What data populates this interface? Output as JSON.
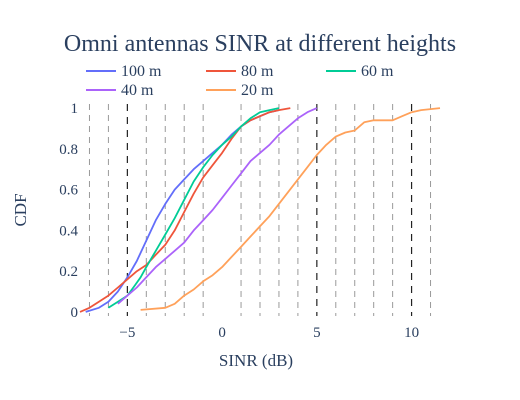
{
  "chart_data": {
    "type": "line",
    "title": "Omni antennas SINR at different heights",
    "xlabel": "SINR (dB)",
    "ylabel": "CDF",
    "xlim": [
      -7.5,
      11.5
    ],
    "ylim": [
      -0.02,
      1.02
    ],
    "xticks": [
      -5,
      0,
      5,
      10
    ],
    "xtick_labels": [
      "−5",
      "0",
      "5",
      "10"
    ],
    "yticks": [
      0,
      0.2,
      0.4,
      0.6,
      0.8,
      1
    ],
    "ytick_labels": [
      "0",
      "0.2",
      "0.4",
      "0.6",
      "0.8",
      "1"
    ],
    "grid": "dashed vertical lines",
    "grid_x": [
      -7,
      -6,
      -5,
      -4,
      -3,
      -2,
      -1,
      1,
      2,
      3,
      4,
      5,
      6,
      7,
      8,
      9,
      10,
      11
    ],
    "grid_major_x": [
      -5,
      5,
      10
    ],
    "legend_position": "top",
    "series": [
      {
        "name": "100 m",
        "color": "#636efa",
        "x": [
          -7.2,
          -6.5,
          -6.0,
          -5.5,
          -5.0,
          -4.5,
          -4.0,
          -3.5,
          -3.0,
          -2.5,
          -2.0,
          -1.5,
          -1.0,
          -0.5,
          0.0,
          0.5,
          1.0,
          1.5,
          2.0,
          2.5,
          3.0
        ],
        "y": [
          0.0,
          0.02,
          0.05,
          0.1,
          0.17,
          0.25,
          0.35,
          0.45,
          0.53,
          0.6,
          0.65,
          0.7,
          0.74,
          0.78,
          0.82,
          0.87,
          0.91,
          0.94,
          0.96,
          0.98,
          0.99
        ]
      },
      {
        "name": "80 m",
        "color": "#ef553b",
        "x": [
          -7.5,
          -7.0,
          -6.5,
          -6.0,
          -5.5,
          -5.0,
          -4.5,
          -4.0,
          -3.5,
          -3.0,
          -2.5,
          -2.0,
          -1.5,
          -1.0,
          -0.5,
          0.0,
          0.5,
          1.0,
          1.5,
          2.0,
          2.5,
          3.0,
          3.6
        ],
        "y": [
          0.0,
          0.02,
          0.05,
          0.08,
          0.12,
          0.16,
          0.2,
          0.23,
          0.28,
          0.33,
          0.4,
          0.49,
          0.58,
          0.66,
          0.72,
          0.78,
          0.85,
          0.91,
          0.94,
          0.96,
          0.98,
          0.99,
          1.0
        ]
      },
      {
        "name": "60 m",
        "color": "#00cc96",
        "x": [
          -6.0,
          -5.5,
          -5.0,
          -4.6,
          -4.3,
          -4.0,
          -3.5,
          -3.0,
          -2.5,
          -2.0,
          -1.5,
          -1.0,
          -0.5,
          0.0,
          0.5,
          1.0,
          1.5,
          2.0,
          2.5,
          3.0
        ],
        "y": [
          0.02,
          0.05,
          0.08,
          0.13,
          0.17,
          0.22,
          0.3,
          0.38,
          0.46,
          0.55,
          0.64,
          0.71,
          0.77,
          0.82,
          0.86,
          0.91,
          0.95,
          0.98,
          0.99,
          1.0
        ]
      },
      {
        "name": "40 m",
        "color": "#ab63fa",
        "x": [
          -5.5,
          -5.0,
          -4.5,
          -4.0,
          -3.5,
          -3.0,
          -2.5,
          -2.0,
          -1.5,
          -1.0,
          -0.5,
          0.0,
          0.5,
          1.0,
          1.5,
          2.0,
          2.5,
          3.0,
          3.5,
          4.0,
          4.5,
          5.0
        ],
        "y": [
          0.04,
          0.08,
          0.12,
          0.17,
          0.22,
          0.26,
          0.3,
          0.34,
          0.4,
          0.45,
          0.5,
          0.56,
          0.62,
          0.68,
          0.74,
          0.78,
          0.82,
          0.87,
          0.91,
          0.95,
          0.98,
          1.0
        ]
      },
      {
        "name": "20 m",
        "color": "#ffa15a",
        "x": [
          -4.3,
          -3.0,
          -2.5,
          -2.0,
          -1.5,
          -1.0,
          -0.5,
          0.0,
          0.5,
          1.0,
          1.5,
          2.0,
          2.5,
          3.0,
          3.5,
          4.0,
          4.5,
          5.0,
          5.5,
          6.0,
          6.5,
          7.0,
          7.5,
          8.0,
          9.0,
          9.5,
          10.0,
          10.5,
          11.5
        ],
        "y": [
          0.01,
          0.02,
          0.04,
          0.08,
          0.11,
          0.15,
          0.18,
          0.22,
          0.27,
          0.32,
          0.37,
          0.42,
          0.47,
          0.53,
          0.59,
          0.65,
          0.71,
          0.77,
          0.82,
          0.86,
          0.88,
          0.89,
          0.93,
          0.94,
          0.94,
          0.96,
          0.98,
          0.99,
          1.0
        ]
      }
    ]
  }
}
